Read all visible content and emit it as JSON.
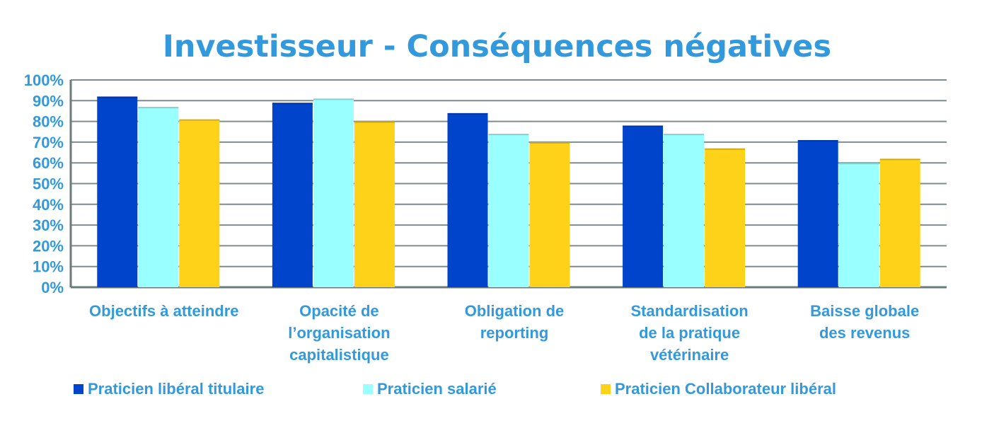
{
  "colors": {
    "text": "#3399dd",
    "grid": "#7f8c8d",
    "axis": "#6b7a7b",
    "series": [
      "#0044cc",
      "#99ffff",
      "#ffd21a"
    ]
  },
  "chart_data": {
    "type": "bar",
    "title": "Investisseur - Conséquences négatives",
    "categories": [
      [
        "Objectifs à atteindre"
      ],
      [
        "Opacité de",
        "l’organisation",
        "capitalistique"
      ],
      [
        "Obligation de",
        "reporting"
      ],
      [
        "Standardisation",
        "de la pratique",
        "vétérinaire"
      ],
      [
        "Baisse globale",
        "des revenus"
      ]
    ],
    "series": [
      {
        "name": "Praticien libéral titulaire",
        "values": [
          92,
          89,
          84,
          78,
          71
        ]
      },
      {
        "name": "Praticien salarié",
        "values": [
          87,
          91,
          74,
          74,
          60
        ]
      },
      {
        "name": "Praticien Collaborateur libéral",
        "values": [
          81,
          80,
          70,
          67,
          62
        ]
      }
    ],
    "ylim": [
      0,
      100
    ],
    "yticks": [
      "0%",
      "10%",
      "20%",
      "30%",
      "40%",
      "50%",
      "60%",
      "70%",
      "80%",
      "90%",
      "100%"
    ],
    "grid": true,
    "legend": "bottom"
  }
}
